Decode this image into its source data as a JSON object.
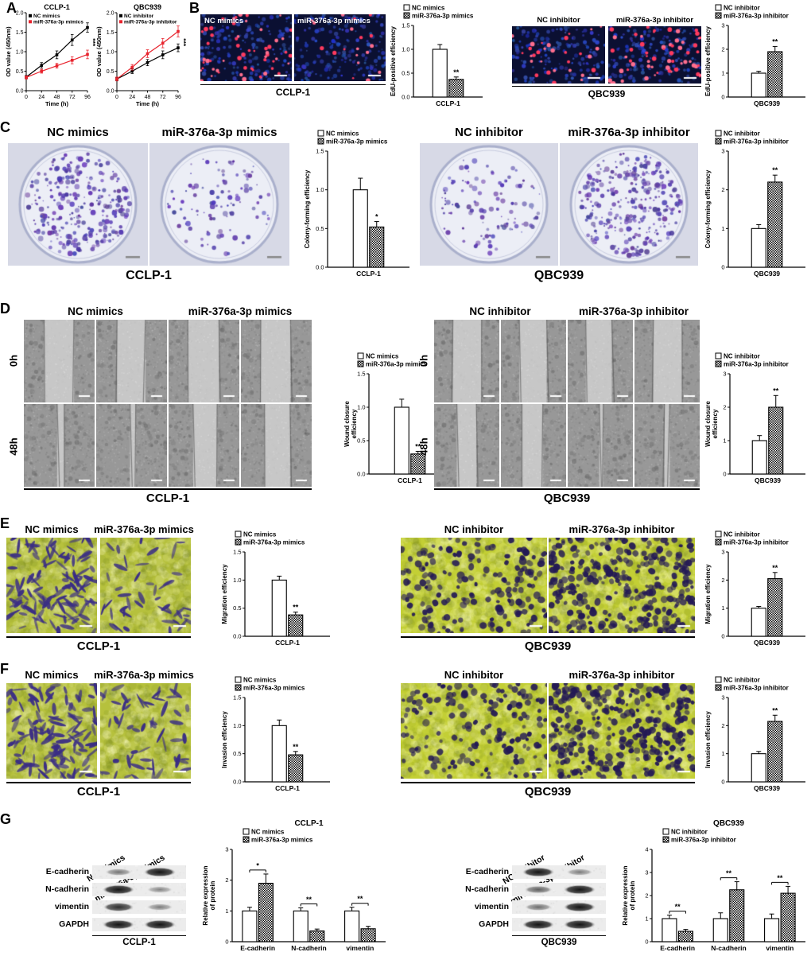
{
  "panels": {
    "A": {
      "label": "A",
      "charts": [
        {
          "title": "CCLP-1",
          "xlabel": "Time (h)",
          "ylabel": "OD value (450nm)",
          "x": [
            0,
            24,
            48,
            72,
            96
          ],
          "ylim": [
            0,
            2
          ],
          "yticks": [
            0,
            0.5,
            1,
            1.5,
            2
          ],
          "sig": "***",
          "series": [
            {
              "name": "NC mimics",
              "color": "#000000",
              "values": [
                0.35,
                0.65,
                0.92,
                1.3,
                1.62
              ],
              "errors": [
                0.04,
                0.07,
                0.1,
                0.14,
                0.12
              ]
            },
            {
              "name": "miR-376a-3p mimics",
              "color": "#e8232d",
              "values": [
                0.34,
                0.5,
                0.64,
                0.78,
                0.93
              ],
              "errors": [
                0.04,
                0.05,
                0.06,
                0.09,
                0.11
              ]
            }
          ]
        },
        {
          "title": "QBC939",
          "xlabel": "Time (h)",
          "ylabel": "OD value (450nm)",
          "x": [
            0,
            24,
            48,
            72,
            96
          ],
          "ylim": [
            0,
            2
          ],
          "yticks": [
            0,
            0.5,
            1,
            1.5,
            2
          ],
          "sig": "***",
          "series": [
            {
              "name": "NC inhibitor",
              "color": "#000000",
              "values": [
                0.3,
                0.5,
                0.72,
                0.92,
                1.1
              ],
              "errors": [
                0.04,
                0.06,
                0.08,
                0.1,
                0.1
              ]
            },
            {
              "name": "miR-376a-3p inhibitor",
              "color": "#e8232d",
              "values": [
                0.3,
                0.6,
                0.95,
                1.22,
                1.52
              ],
              "errors": [
                0.05,
                0.07,
                0.1,
                0.12,
                0.14
              ]
            }
          ]
        }
      ]
    },
    "B": {
      "label": "B",
      "left": {
        "img_labels": [
          "NC mimics",
          "miR-376a-3p mimics"
        ],
        "caption": "CCLP-1",
        "chart": {
          "ylabel": [
            "EdU-positive efficiency"
          ],
          "ylim": [
            0,
            1.5
          ],
          "yticks": [
            0,
            0.5,
            1,
            1.5
          ],
          "ydec": 1,
          "categories": [
            "CCLP-1"
          ],
          "series": [
            {
              "name": "NC mimics",
              "pattern": "plain",
              "values": [
                1.0
              ],
              "errors": [
                0.1
              ],
              "sig": [
                ""
              ]
            },
            {
              "name": "miR-376a-3p mimics",
              "pattern": "checker",
              "values": [
                0.37
              ],
              "errors": [
                0.05
              ],
              "sig": [
                "**"
              ]
            }
          ]
        }
      },
      "right": {
        "img_labels": [
          "NC inhibitor",
          "miR-376a-3p inhibitor"
        ],
        "caption": "QBC939",
        "chart": {
          "ylabel": [
            "EdU-positive efficiency"
          ],
          "ylim": [
            0,
            3
          ],
          "yticks": [
            0,
            1,
            2,
            3
          ],
          "ydec": 0,
          "categories": [
            "QBC939"
          ],
          "series": [
            {
              "name": "NC inhibitor",
              "pattern": "plain",
              "values": [
                1.0
              ],
              "errors": [
                0.08
              ],
              "sig": [
                ""
              ]
            },
            {
              "name": "miR-376a-3p inhibitor",
              "pattern": "checker",
              "values": [
                1.9
              ],
              "errors": [
                0.22
              ],
              "sig": [
                "**"
              ]
            }
          ]
        }
      }
    },
    "C": {
      "label": "C",
      "left": {
        "headers": [
          "NC mimics",
          "miR-376a-3p mimics"
        ],
        "caption": "CCLP-1",
        "chart": {
          "ylabel": [
            "Colony-forming efficiency"
          ],
          "ylim": [
            0,
            1.5
          ],
          "yticks": [
            0,
            0.5,
            1,
            1.5
          ],
          "ydec": 1,
          "categories": [
            "CCLP-1"
          ],
          "series": [
            {
              "name": "NC mimics",
              "pattern": "plain",
              "values": [
                1.0
              ],
              "errors": [
                0.15
              ],
              "sig": [
                ""
              ]
            },
            {
              "name": "miR-376a-3p mimics",
              "pattern": "checker",
              "values": [
                0.52
              ],
              "errors": [
                0.07
              ],
              "sig": [
                "*"
              ]
            }
          ]
        }
      },
      "right": {
        "headers": [
          "NC inhibitor",
          "miR-376a-3p inhibitor"
        ],
        "caption": "QBC939",
        "chart": {
          "ylabel": [
            "Colony-forming efficiency"
          ],
          "ylim": [
            0,
            3
          ],
          "yticks": [
            0,
            1,
            2,
            3
          ],
          "ydec": 0,
          "categories": [
            "QBC939"
          ],
          "series": [
            {
              "name": "NC inhibitor",
              "pattern": "plain",
              "values": [
                1.0
              ],
              "errors": [
                0.1
              ],
              "sig": [
                ""
              ]
            },
            {
              "name": "miR-376a-3p inhibitor",
              "pattern": "checker",
              "values": [
                2.2
              ],
              "errors": [
                0.18
              ],
              "sig": [
                "**"
              ]
            }
          ]
        }
      }
    },
    "D": {
      "label": "D",
      "row_labels": [
        "0h",
        "48h"
      ],
      "left": {
        "headers": [
          "NC mimics",
          "miR-376a-3p mimics"
        ],
        "caption": "CCLP-1",
        "chart": {
          "ylabel": [
            "Wound closure",
            "efficiency"
          ],
          "ylim": [
            0,
            1.5
          ],
          "yticks": [
            0,
            0.5,
            1,
            1.5
          ],
          "ydec": 1,
          "categories": [
            "CCLP-1"
          ],
          "series": [
            {
              "name": "NC mimics",
              "pattern": "plain",
              "values": [
                1.0
              ],
              "errors": [
                0.12
              ],
              "sig": [
                ""
              ]
            },
            {
              "name": "miR-376a-3p mimics",
              "pattern": "checker",
              "values": [
                0.3
              ],
              "errors": [
                0.04
              ],
              "sig": [
                "**"
              ]
            }
          ]
        }
      },
      "right": {
        "headers": [
          "NC inhibitor",
          "miR-376a-3p inhibitor"
        ],
        "caption": "QBC939",
        "chart": {
          "ylabel": [
            "Wound closure",
            "efficiency"
          ],
          "ylim": [
            0,
            3
          ],
          "yticks": [
            0,
            1,
            2,
            3
          ],
          "ydec": 0,
          "categories": [
            "QBC939"
          ],
          "series": [
            {
              "name": "NC inhibitor",
              "pattern": "plain",
              "values": [
                1.0
              ],
              "errors": [
                0.15
              ],
              "sig": [
                ""
              ]
            },
            {
              "name": "miR-376a-3p inhibitor",
              "pattern": "checker",
              "values": [
                2.0
              ],
              "errors": [
                0.35
              ],
              "sig": [
                "**"
              ]
            }
          ]
        }
      }
    },
    "E": {
      "label": "E",
      "left": {
        "headers": [
          "NC mimics",
          "miR-376a-3p mimics"
        ],
        "caption": "CCLP-1",
        "chart": {
          "ylabel": [
            "Migration efficiency"
          ],
          "ylim": [
            0,
            1.5
          ],
          "yticks": [
            0,
            0.5,
            1,
            1.5
          ],
          "ydec": 1,
          "categories": [
            "CCLP-1"
          ],
          "series": [
            {
              "name": "NC mimics",
              "pattern": "plain",
              "values": [
                1.0
              ],
              "errors": [
                0.07
              ],
              "sig": [
                ""
              ]
            },
            {
              "name": "miR-376a-3p mimics",
              "pattern": "checker",
              "values": [
                0.38
              ],
              "errors": [
                0.05
              ],
              "sig": [
                "**"
              ]
            }
          ]
        }
      },
      "right": {
        "headers": [
          "NC inhibitor",
          "miR-376a-3p inhibitor"
        ],
        "caption": "QBC939",
        "chart": {
          "ylabel": [
            "Migration efficiency"
          ],
          "ylim": [
            0,
            3
          ],
          "yticks": [
            0,
            1,
            2,
            3
          ],
          "ydec": 0,
          "categories": [
            "QBC939"
          ],
          "series": [
            {
              "name": "NC inhibitor",
              "pattern": "plain",
              "values": [
                1.0
              ],
              "errors": [
                0.06
              ],
              "sig": [
                ""
              ]
            },
            {
              "name": "miR-376a-3p inhibitor",
              "pattern": "checker",
              "values": [
                2.05
              ],
              "errors": [
                0.22
              ],
              "sig": [
                "**"
              ]
            }
          ]
        }
      }
    },
    "F": {
      "label": "F",
      "left": {
        "headers": [
          "NC mimics",
          "miR-376a-3p mimics"
        ],
        "caption": "CCLP-1",
        "chart": {
          "ylabel": [
            "Invasion efficiency"
          ],
          "ylim": [
            0,
            1.5
          ],
          "yticks": [
            0,
            0.5,
            1,
            1.5
          ],
          "ydec": 1,
          "categories": [
            "CCLP-1"
          ],
          "series": [
            {
              "name": "NC mimics",
              "pattern": "plain",
              "values": [
                1.0
              ],
              "errors": [
                0.1
              ],
              "sig": [
                ""
              ]
            },
            {
              "name": "miR-376a-3p mimics",
              "pattern": "checker",
              "values": [
                0.48
              ],
              "errors": [
                0.06
              ],
              "sig": [
                "**"
              ]
            }
          ]
        }
      },
      "right": {
        "headers": [
          "NC inhibitor",
          "miR-376a-3p inhibitor"
        ],
        "caption": "QBC939",
        "chart": {
          "ylabel": [
            "Invasion efficiency"
          ],
          "ylim": [
            0,
            3
          ],
          "yticks": [
            0,
            1,
            2,
            3
          ],
          "ydec": 0,
          "categories": [
            "QBC939"
          ],
          "series": [
            {
              "name": "NC inhibitor",
              "pattern": "plain",
              "values": [
                1.0
              ],
              "errors": [
                0.08
              ],
              "sig": [
                ""
              ]
            },
            {
              "name": "miR-376a-3p inhibitor",
              "pattern": "checker",
              "values": [
                2.15
              ],
              "errors": [
                0.22
              ],
              "sig": [
                "**"
              ]
            }
          ]
        }
      }
    },
    "G": {
      "label": "G",
      "left": {
        "diag_labels": [
          "miR-376a-3p mimics",
          "NC mimics"
        ],
        "rows": [
          "E-cadherin",
          "N-cadherin",
          "vimentin",
          "GAPDH"
        ],
        "caption": "CCLP-1",
        "chart": {
          "title": "CCLP-1",
          "ylabel": [
            "Relative expression",
            "of protein"
          ],
          "ylim": [
            0,
            3
          ],
          "yticks": [
            0,
            1,
            2,
            3
          ],
          "ydec": 0,
          "categories": [
            "E-cadherin",
            "N-cadherin",
            "vimentin"
          ],
          "series": [
            {
              "name": "NC mimics",
              "pattern": "plain",
              "values": [
                1.0,
                1.0,
                1.0
              ],
              "errors": [
                0.12,
                0.1,
                0.12
              ],
              "sig": [
                "",
                "",
                ""
              ]
            },
            {
              "name": "miR-376a-3p mimics",
              "pattern": "checker",
              "values": [
                1.9,
                0.35,
                0.42
              ],
              "errors": [
                0.3,
                0.06,
                0.08
              ],
              "sig": [
                "*",
                "**",
                "**"
              ]
            }
          ]
        }
      },
      "right": {
        "diag_labels": [
          "miR-376a-3p inhibitor",
          "NC inhibitor"
        ],
        "rows": [
          "E-cadherin",
          "N-cadherin",
          "vimentin",
          "GAPDH"
        ],
        "caption": "QBC939",
        "chart": {
          "title": "QBC939",
          "ylabel": [
            "Relative expression",
            "of protein"
          ],
          "ylim": [
            0,
            4
          ],
          "yticks": [
            0,
            1,
            2,
            3,
            4
          ],
          "ydec": 0,
          "categories": [
            "E-cadherin",
            "N-cadherin",
            "vimentin"
          ],
          "series": [
            {
              "name": "NC inhibitor",
              "pattern": "plain",
              "values": [
                1.0,
                1.0,
                1.0
              ],
              "errors": [
                0.15,
                0.25,
                0.2
              ],
              "sig": [
                "",
                "",
                ""
              ]
            },
            {
              "name": "miR-376a-3p inhibitor",
              "pattern": "checker",
              "values": [
                0.45,
                2.25,
                2.1
              ],
              "errors": [
                0.08,
                0.35,
                0.3
              ],
              "sig": [
                "**",
                "**",
                "**"
              ]
            }
          ]
        }
      }
    }
  }
}
